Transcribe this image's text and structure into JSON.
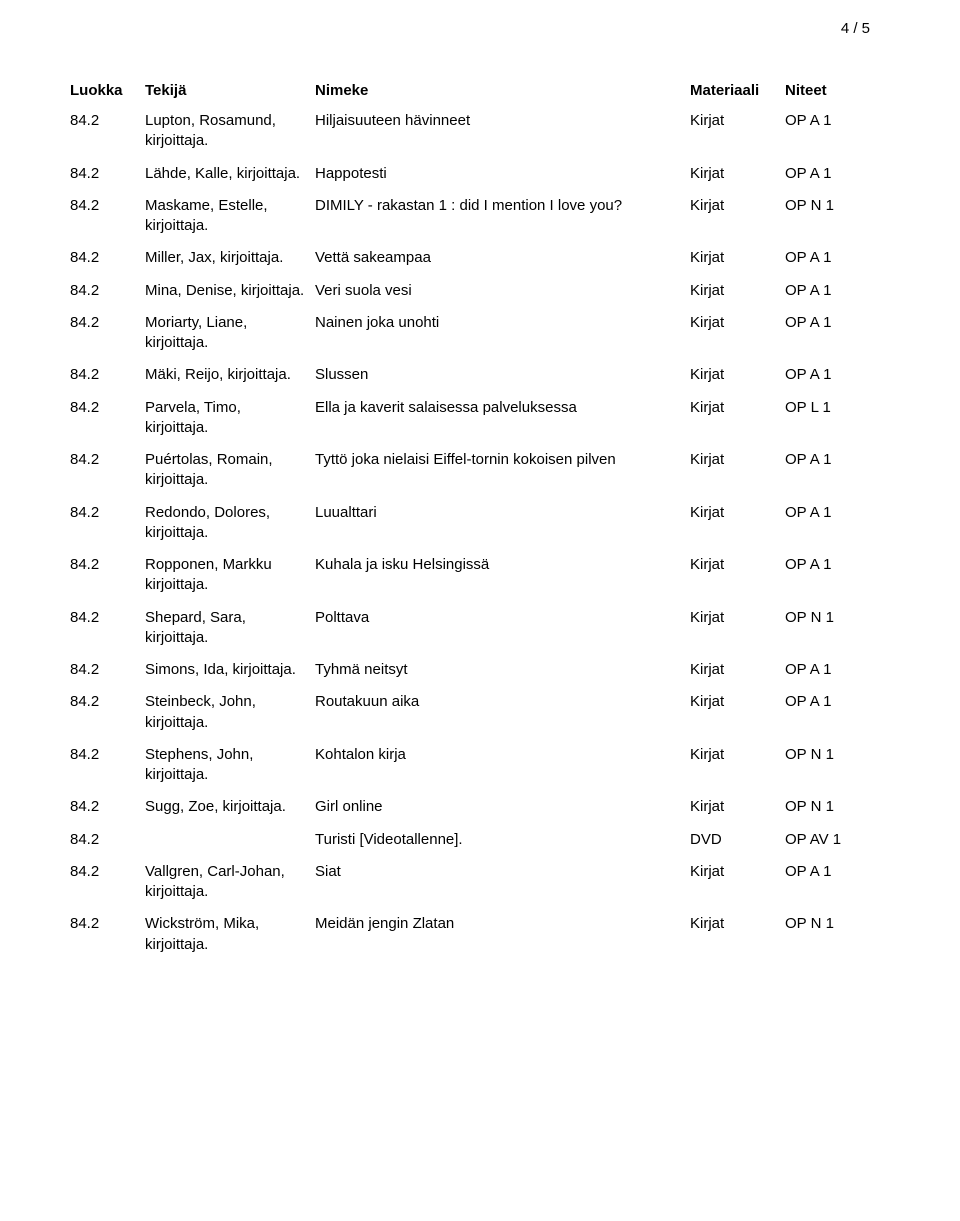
{
  "page_number": "4 / 5",
  "headers": {
    "luokka": "Luokka",
    "tekija": "Tekijä",
    "nimeke": "Nimeke",
    "materiaali": "Materiaali",
    "niteet": "Niteet"
  },
  "font": {
    "family": "Arial",
    "body_size_pt": 11,
    "header_weight": "bold"
  },
  "colors": {
    "text": "#000000",
    "background": "#ffffff"
  },
  "rows": [
    {
      "luokka": "84.2",
      "tekija": "Lupton, Rosamund, kirjoittaja.",
      "nimeke": "Hiljaisuuteen hävinneet",
      "materiaali": "Kirjat",
      "niteet": "OP A 1"
    },
    {
      "luokka": "84.2",
      "tekija": "Lähde, Kalle, kirjoittaja.",
      "nimeke": "Happotesti",
      "materiaali": "Kirjat",
      "niteet": "OP A 1"
    },
    {
      "luokka": "84.2",
      "tekija": "Maskame, Estelle, kirjoittaja.",
      "nimeke": "DIMILY - rakastan 1 : did I mention I love you?",
      "materiaali": "Kirjat",
      "niteet": "OP N 1"
    },
    {
      "luokka": "84.2",
      "tekija": "Miller, Jax, kirjoittaja.",
      "nimeke": "Vettä sakeampaa",
      "materiaali": "Kirjat",
      "niteet": "OP A 1"
    },
    {
      "luokka": "84.2",
      "tekija": "Mina, Denise, kirjoittaja.",
      "nimeke": "Veri suola vesi",
      "materiaali": "Kirjat",
      "niteet": "OP A 1"
    },
    {
      "luokka": "84.2",
      "tekija": "Moriarty, Liane, kirjoittaja.",
      "nimeke": "Nainen joka unohti",
      "materiaali": "Kirjat",
      "niteet": "OP A 1"
    },
    {
      "luokka": "84.2",
      "tekija": "Mäki, Reijo, kirjoittaja.",
      "nimeke": "Slussen",
      "materiaali": "Kirjat",
      "niteet": "OP A 1"
    },
    {
      "luokka": "84.2",
      "tekija": "Parvela, Timo, kirjoittaja.",
      "nimeke": "Ella ja kaverit salaisessa palveluksessa",
      "materiaali": "Kirjat",
      "niteet": "OP L 1"
    },
    {
      "luokka": "84.2",
      "tekija": "Puértolas, Romain, kirjoittaja.",
      "nimeke": "Tyttö joka nielaisi Eiffel-tornin kokoisen pilven",
      "materiaali": "Kirjat",
      "niteet": "OP A 1"
    },
    {
      "luokka": "84.2",
      "tekija": "Redondo, Dolores, kirjoittaja.",
      "nimeke": "Luualttari",
      "materiaali": "Kirjat",
      "niteet": "OP A 1"
    },
    {
      "luokka": "84.2",
      "tekija": "Ropponen, Markku kirjoittaja.",
      "nimeke": "Kuhala ja isku Helsingissä",
      "materiaali": "Kirjat",
      "niteet": "OP A 1"
    },
    {
      "luokka": "84.2",
      "tekija": "Shepard, Sara, kirjoittaja.",
      "nimeke": "Polttava",
      "materiaali": "Kirjat",
      "niteet": "OP N 1"
    },
    {
      "luokka": "84.2",
      "tekija": "Simons, Ida, kirjoittaja.",
      "nimeke": "Tyhmä neitsyt",
      "materiaali": "Kirjat",
      "niteet": "OP A 1"
    },
    {
      "luokka": "84.2",
      "tekija": "Steinbeck, John, kirjoittaja.",
      "nimeke": "Routakuun aika",
      "materiaali": "Kirjat",
      "niteet": "OP A 1"
    },
    {
      "luokka": "84.2",
      "tekija": "Stephens, John, kirjoittaja.",
      "nimeke": "Kohtalon kirja",
      "materiaali": "Kirjat",
      "niteet": "OP N 1"
    },
    {
      "luokka": "84.2",
      "tekija": "Sugg, Zoe, kirjoittaja.",
      "nimeke": "Girl online",
      "materiaali": "Kirjat",
      "niteet": "OP N 1"
    },
    {
      "luokka": "84.2",
      "tekija": "",
      "nimeke": "Turisti [Videotallenne].",
      "materiaali": "DVD",
      "niteet": "OP AV 1"
    },
    {
      "luokka": "84.2",
      "tekija": "Vallgren, Carl-Johan, kirjoittaja.",
      "nimeke": "Siat",
      "materiaali": "Kirjat",
      "niteet": "OP A 1"
    },
    {
      "luokka": "84.2",
      "tekija": "Wickström, Mika, kirjoittaja.",
      "nimeke": "Meidän jengin Zlatan",
      "materiaali": "Kirjat",
      "niteet": "OP N 1"
    }
  ]
}
